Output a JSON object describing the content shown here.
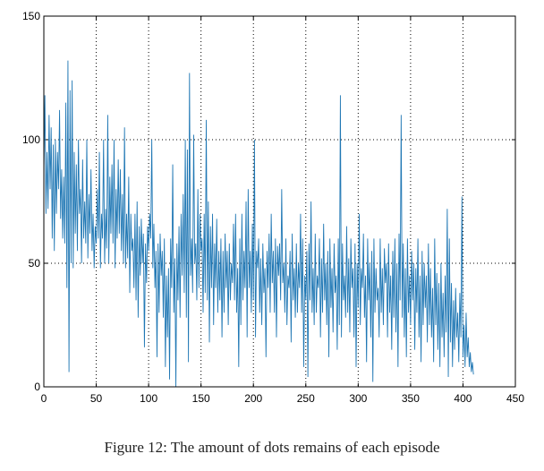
{
  "caption": "Figure 12: The amount of dots remains of each episode",
  "colors": {
    "line": "#1f77b4",
    "axis": "#000000",
    "grid": "#000000",
    "background": "#ffffff"
  },
  "chart_data": {
    "type": "line",
    "title": "",
    "xlabel": "",
    "ylabel": "",
    "xlim": [
      0,
      450
    ],
    "ylim": [
      0,
      150
    ],
    "xticks": [
      0,
      50,
      100,
      150,
      200,
      250,
      300,
      350,
      400,
      450
    ],
    "yticks": [
      0,
      50,
      100,
      150
    ],
    "grid": "dotted",
    "legend": "none",
    "series": [
      {
        "values": [
          88,
          118,
          70,
          95,
          72,
          110,
          80,
          105,
          60,
          98,
          55,
          100,
          70,
          95,
          80,
          112,
          68,
          88,
          60,
          85,
          58,
          115,
          40,
          132,
          6,
          120,
          50,
          124,
          48,
          95,
          62,
          90,
          55,
          100,
          70,
          80,
          50,
          92,
          60,
          75,
          58,
          100,
          52,
          78,
          62,
          88,
          55,
          70,
          48,
          65,
          58,
          80,
          60,
          95,
          48,
          70,
          60,
          100,
          50,
          72,
          56,
          110,
          50,
          85,
          62,
          90,
          58,
          100,
          48,
          80,
          60,
          92,
          62,
          88,
          55,
          78,
          50,
          105,
          48,
          70,
          52,
          85,
          38,
          70,
          55,
          60,
          40,
          70,
          35,
          75,
          28,
          65,
          45,
          68,
          50,
          62,
          16,
          58,
          42,
          65,
          55,
          70,
          60,
          100,
          48,
          66,
          40,
          55,
          12,
          58,
          30,
          62,
          45,
          55,
          28,
          60,
          8,
          45,
          20,
          48,
          3,
          60,
          40,
          90,
          30,
          52,
          0,
          58,
          35,
          65,
          28,
          70,
          45,
          78,
          38,
          100,
          28,
          96,
          10,
          127,
          45,
          60,
          38,
          102,
          50,
          58,
          35,
          80,
          40,
          70,
          55,
          60,
          30,
          70,
          38,
          108,
          35,
          75,
          18,
          65,
          40,
          70,
          25,
          58,
          40,
          68,
          30,
          55,
          35,
          60,
          20,
          55,
          30,
          62,
          40,
          55,
          25,
          58,
          35,
          50,
          42,
          66,
          35,
          70,
          30,
          48,
          8,
          60,
          25,
          70,
          35,
          55,
          40,
          75,
          20,
          80,
          40,
          55,
          30,
          66,
          35,
          100,
          20,
          55,
          48,
          60,
          30,
          52,
          25,
          58,
          38,
          48,
          12,
          55,
          40,
          62,
          30,
          70,
          42,
          55,
          30,
          60,
          20,
          57,
          45,
          58,
          35,
          80,
          42,
          50,
          30,
          60,
          25,
          45,
          40,
          55,
          18,
          62,
          35,
          48,
          28,
          58,
          30,
          50,
          40,
          70,
          30,
          60,
          8,
          45,
          35,
          55,
          4,
          58,
          35,
          75,
          30,
          48,
          25,
          62,
          30,
          45,
          40,
          60,
          20,
          52,
          30,
          66,
          35,
          50,
          25,
          55,
          12,
          60,
          32,
          48,
          22,
          58,
          38,
          45,
          15,
          60,
          25,
          118,
          20,
          58,
          35,
          45,
          28,
          65,
          30,
          52,
          22,
          60,
          40,
          48,
          20,
          58,
          8,
          50,
          32,
          70,
          25,
          48,
          40,
          62,
          28,
          45,
          10,
          60,
          35,
          50,
          20,
          55,
          2,
          60,
          30,
          48,
          35,
          40,
          20,
          60,
          30,
          48,
          25,
          56,
          42,
          50,
          20,
          58,
          30,
          45,
          15,
          55,
          28,
          60,
          22,
          50,
          8,
          62,
          35,
          110,
          28,
          58,
          20,
          48,
          12,
          60,
          30,
          45,
          25,
          55,
          35,
          50,
          15,
          48,
          30,
          60,
          20,
          45,
          10,
          55,
          25,
          50,
          32,
          45,
          18,
          58,
          25,
          48,
          20,
          40,
          10,
          60,
          25,
          46,
          15,
          42,
          8,
          50,
          20,
          38,
          12,
          45,
          22,
          72,
          4,
          60,
          18,
          42,
          8,
          35,
          15,
          40,
          20,
          30,
          10,
          38,
          20,
          77,
          12,
          25,
          8,
          30,
          12,
          20,
          8,
          14,
          6,
          10,
          5
        ]
      }
    ]
  }
}
